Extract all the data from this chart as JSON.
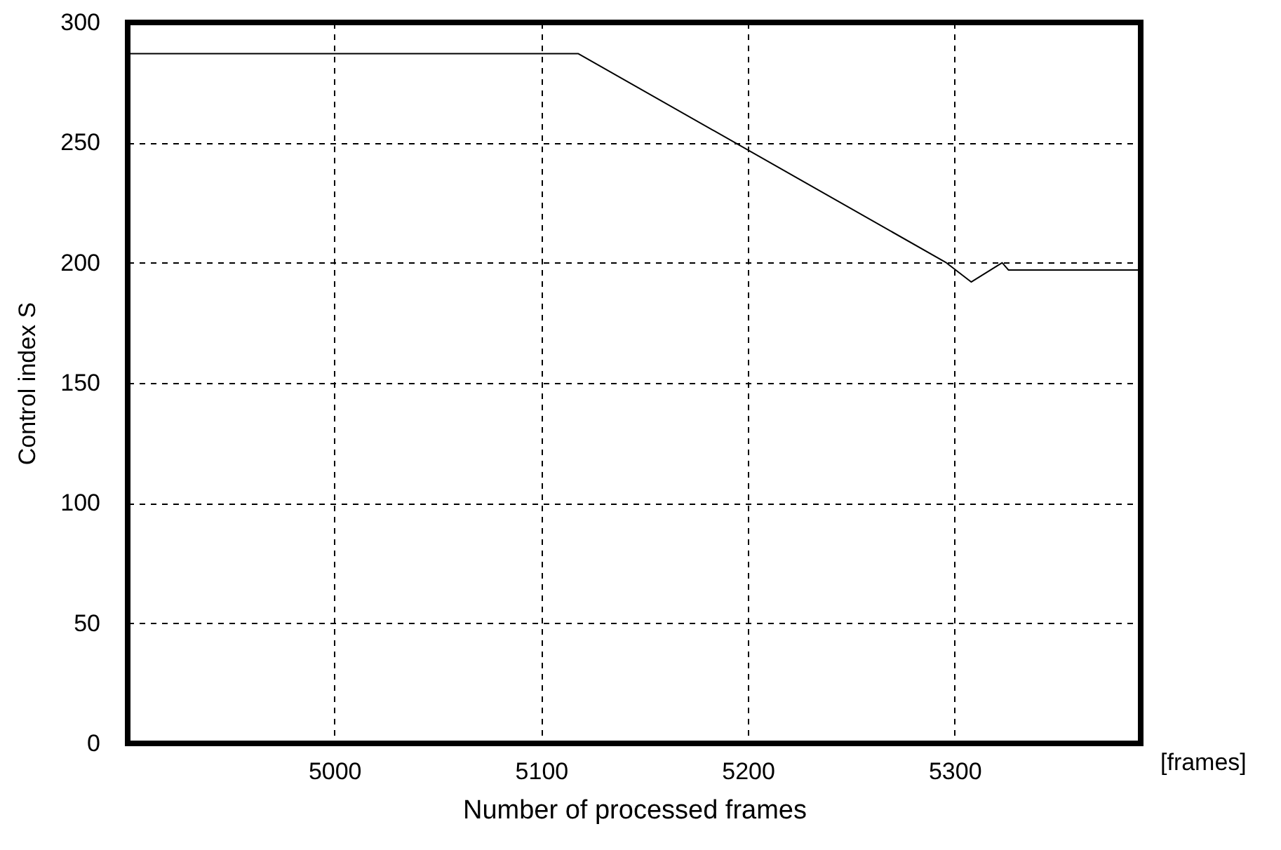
{
  "chart_data": {
    "type": "line",
    "xlabel": "Number of processed frames",
    "ylabel": "Control index S",
    "annotations": [
      "[frames]"
    ],
    "series": [
      {
        "color": "#000000",
        "x": [
          4900,
          5118,
          5296,
          5308,
          5323,
          5326,
          5390
        ],
        "values": [
          287,
          287,
          200,
          192,
          200,
          197,
          197
        ]
      }
    ],
    "xlim": [
      4900,
      5390
    ],
    "xticks": [
      5000,
      5100,
      5200,
      5300
    ],
    "ylim": [
      0,
      300
    ],
    "yticks": [
      0,
      50,
      100,
      150,
      200,
      250,
      300
    ],
    "grid": true
  }
}
